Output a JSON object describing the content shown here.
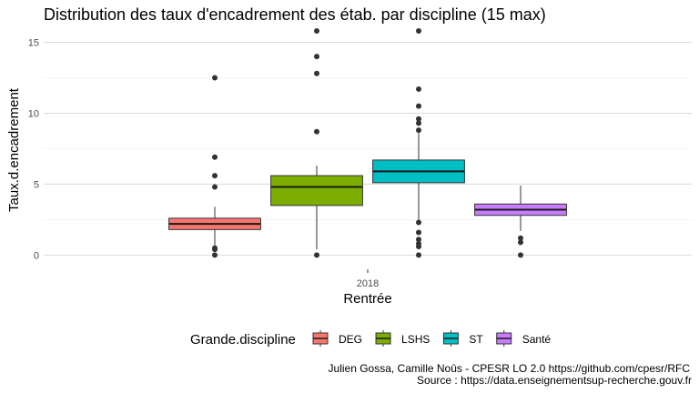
{
  "chart_data": {
    "type": "boxplot",
    "title": "Distribution des taux d'encadrement des étab. par discipline (15 max)",
    "xlabel": "Rentrée",
    "ylabel": "Taux.d.encadrement",
    "categories": [
      "2018"
    ],
    "y_ticks": [
      "0",
      "5",
      "10",
      "15"
    ],
    "ylim": [
      -1.0,
      15.8
    ],
    "grid": true,
    "legend": {
      "title": "Grande.discipline",
      "position": "bottom"
    },
    "series": [
      {
        "name": "DEG",
        "color": "#F8766D",
        "min": 0.7,
        "q1": 1.8,
        "median": 2.2,
        "q3": 2.6,
        "max": 3.4,
        "outliers": [
          12.5,
          6.9,
          5.6,
          4.8,
          0.5,
          0.4,
          0.0
        ]
      },
      {
        "name": "LSHS",
        "color": "#7CAE00",
        "min": 0.4,
        "q1": 3.5,
        "median": 4.8,
        "q3": 5.6,
        "max": 6.3,
        "outliers": [
          15.8,
          14.0,
          12.8,
          8.7,
          0.0
        ]
      },
      {
        "name": "ST",
        "color": "#00BFC4",
        "min": 2.5,
        "q1": 5.1,
        "median": 5.9,
        "q3": 6.7,
        "max": 8.6,
        "outliers": [
          15.8,
          11.7,
          10.5,
          9.6,
          9.3,
          8.8,
          2.3,
          1.6,
          1.1,
          0.8,
          0.6,
          0.0
        ]
      },
      {
        "name": "Santé",
        "color": "#C77CFF",
        "min": 1.7,
        "q1": 2.8,
        "median": 3.2,
        "q3": 3.6,
        "max": 4.9,
        "outliers": [
          1.2,
          0.9,
          0.0
        ]
      }
    ]
  },
  "caption": {
    "line1": "Julien Gossa, Camille Noûs - CPESR LO 2.0 https://github.com/cpesr/RFC",
    "line2": "Source : https://data.enseignementsup-recherche.gouv.fr"
  }
}
